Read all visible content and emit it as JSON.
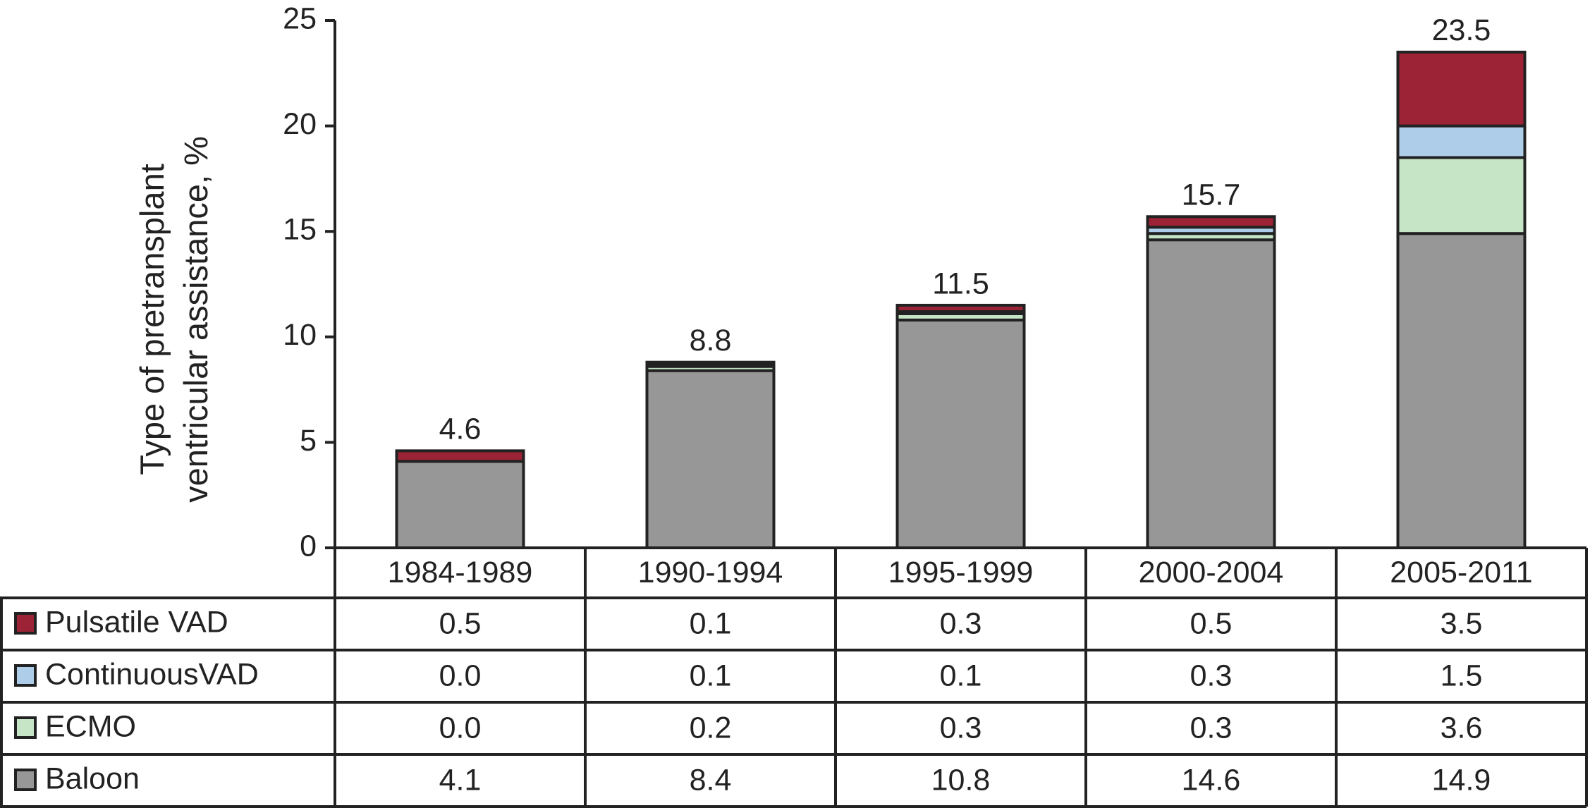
{
  "chart_data": {
    "type": "stacked_bar",
    "y_label": "Type of pretransplant ventricular assistance, %",
    "categories": [
      "1984-1989",
      "1990-1994",
      "1995-1999",
      "2000-2004",
      "2005-2011"
    ],
    "series": [
      {
        "name": "Pulsatile VAD",
        "color": "#9b2335",
        "values": [
          0.5,
          0.1,
          0.3,
          0.5,
          3.5
        ],
        "value_labels": [
          "0.5",
          "0.1",
          "0.3",
          "0.5",
          "3.5"
        ]
      },
      {
        "name": "ContinuousVAD",
        "color": "#aecde9",
        "values": [
          0,
          0.1,
          0.1,
          0.3,
          1.5
        ],
        "value_labels": [
          "0.0",
          "0.1",
          "0.1",
          "0.3",
          "1.5"
        ]
      },
      {
        "name": "ECMO",
        "color": "#c6e5c6",
        "values": [
          0,
          0.2,
          0.3,
          0.3,
          3.6
        ],
        "value_labels": [
          "0.0",
          "0.2",
          "0.3",
          "0.3",
          "3.6"
        ]
      },
      {
        "name": "Baloon",
        "color": "#979797",
        "values": [
          4.1,
          8.4,
          10.8,
          14.6,
          14.9
        ],
        "value_labels": [
          "4.1",
          "8.4",
          "10.8",
          "14.6",
          "14.9"
        ]
      }
    ],
    "totals": [
      4.6,
      8.8,
      11.5,
      15.7,
      23.5
    ],
    "ylim": [
      0,
      25
    ],
    "yticks": [
      0,
      5,
      10,
      15,
      20,
      25
    ],
    "grid": false
  }
}
